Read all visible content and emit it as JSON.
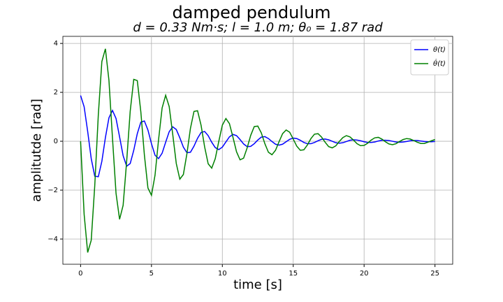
{
  "chart_data": {
    "type": "line",
    "title": "damped pendulum",
    "subtitle": "d = 0.33  Nm·s;  l = 1.0  m;  θ₀ = 1.87  rad",
    "x_label": "time [s]",
    "y_label": "amplitutde [rad]",
    "x": [
      0,
      0.25,
      0.5,
      0.75,
      1,
      1.25,
      1.5,
      1.75,
      2,
      2.25,
      2.5,
      2.75,
      3,
      3.25,
      3.5,
      3.75,
      4,
      4.25,
      4.5,
      4.75,
      5,
      5.25,
      5.5,
      5.75,
      6,
      6.25,
      6.5,
      6.75,
      7,
      7.25,
      7.5,
      7.75,
      8,
      8.25,
      8.5,
      8.75,
      9,
      9.25,
      9.5,
      9.75,
      10,
      10.25,
      10.5,
      10.75,
      11,
      11.25,
      11.5,
      11.75,
      12,
      12.25,
      12.5,
      12.75,
      13,
      13.25,
      13.5,
      13.75,
      14,
      14.25,
      14.5,
      14.75,
      15,
      15.25,
      15.5,
      15.75,
      16,
      16.25,
      16.5,
      16.75,
      17,
      17.25,
      17.5,
      17.75,
      18,
      18.25,
      18.5,
      18.75,
      19,
      19.25,
      19.5,
      19.75,
      20,
      20.25,
      20.5,
      20.75,
      21,
      21.25,
      21.5,
      21.75,
      22,
      22.25,
      22.5,
      22.75,
      23,
      23.25,
      23.5,
      23.75,
      24,
      24.25,
      24.5,
      24.75,
      25
    ],
    "series": [
      {
        "name": "θ(t)",
        "color": "#0000ff",
        "values": [
          1.87,
          1.41,
          0.4,
          -0.71,
          -1.43,
          -1.45,
          -0.82,
          0.15,
          0.96,
          1.26,
          0.93,
          0.18,
          -0.59,
          -1.02,
          -0.91,
          -0.37,
          0.31,
          0.78,
          0.83,
          0.46,
          -0.1,
          -0.57,
          -0.71,
          -0.49,
          -0.04,
          0.39,
          0.59,
          0.48,
          0.14,
          -0.24,
          -0.47,
          -0.45,
          -0.2,
          0.12,
          0.36,
          0.4,
          0.23,
          -0.04,
          -0.26,
          -0.34,
          -0.24,
          -0.03,
          0.18,
          0.28,
          0.23,
          0.07,
          -0.11,
          -0.22,
          -0.21,
          -0.1,
          0.05,
          0.17,
          0.19,
          0.11,
          -0.01,
          -0.12,
          -0.16,
          -0.12,
          -0.02,
          0.08,
          0.13,
          0.11,
          0.04,
          -0.05,
          -0.1,
          -0.1,
          -0.05,
          0.02,
          0.08,
          0.09,
          0.06,
          0,
          -0.06,
          -0.08,
          -0.06,
          -0.01,
          0.04,
          0.06,
          0.05,
          0.02,
          -0.02,
          -0.05,
          -0.05,
          -0.03,
          0.01,
          0.04,
          0.04,
          0.03,
          0,
          -0.03,
          -0.04,
          -0.03,
          -0.01,
          0.02,
          0.03,
          0.03,
          0.01,
          -0.01,
          -0.02,
          -0.02,
          -0.01
        ]
      },
      {
        "name": "θ̇(t)",
        "color": "#008000",
        "values": [
          0,
          -2.99,
          -4.55,
          -4.05,
          -1.81,
          1.08,
          3.26,
          3.78,
          2.49,
          0.12,
          -2.13,
          -3.19,
          -2.62,
          -0.82,
          1.23,
          2.53,
          2.48,
          1.2,
          -0.56,
          -1.91,
          -2.21,
          -1.39,
          0.06,
          1.36,
          1.88,
          1.42,
          0.28,
          -0.91,
          -1.55,
          -1.36,
          -0.51,
          0.53,
          1.22,
          1.25,
          0.65,
          -0.23,
          -0.92,
          -1.1,
          -0.71,
          0,
          0.66,
          0.93,
          0.72,
          0.16,
          -0.43,
          -0.76,
          -0.69,
          -0.27,
          0.24,
          0.6,
          0.62,
          0.34,
          -0.1,
          -0.45,
          -0.55,
          -0.37,
          -0.02,
          0.31,
          0.46,
          0.37,
          0.09,
          -0.2,
          -0.37,
          -0.35,
          -0.15,
          0.11,
          0.29,
          0.31,
          0.17,
          -0.04,
          -0.22,
          -0.27,
          -0.19,
          -0.01,
          0.15,
          0.23,
          0.18,
          0.05,
          -0.1,
          -0.18,
          -0.17,
          -0.08,
          0.05,
          0.14,
          0.16,
          0.09,
          -0.02,
          -0.11,
          -0.14,
          -0.1,
          -0.01,
          0.07,
          0.11,
          0.09,
          0.03,
          -0.04,
          -0.09,
          -0.09,
          -0.04,
          0.02,
          0.07
        ]
      }
    ],
    "xlim": [
      -1.25,
      26.25
    ],
    "xticks": [
      0,
      5,
      10,
      15,
      20,
      25
    ],
    "ylim": [
      -5.03,
      4.29
    ],
    "yticks": [
      {
        "value": -4,
        "label": "−4"
      },
      {
        "value": -2,
        "label": "−2"
      },
      0,
      2,
      4
    ],
    "grid": true,
    "legend": "upper right"
  }
}
